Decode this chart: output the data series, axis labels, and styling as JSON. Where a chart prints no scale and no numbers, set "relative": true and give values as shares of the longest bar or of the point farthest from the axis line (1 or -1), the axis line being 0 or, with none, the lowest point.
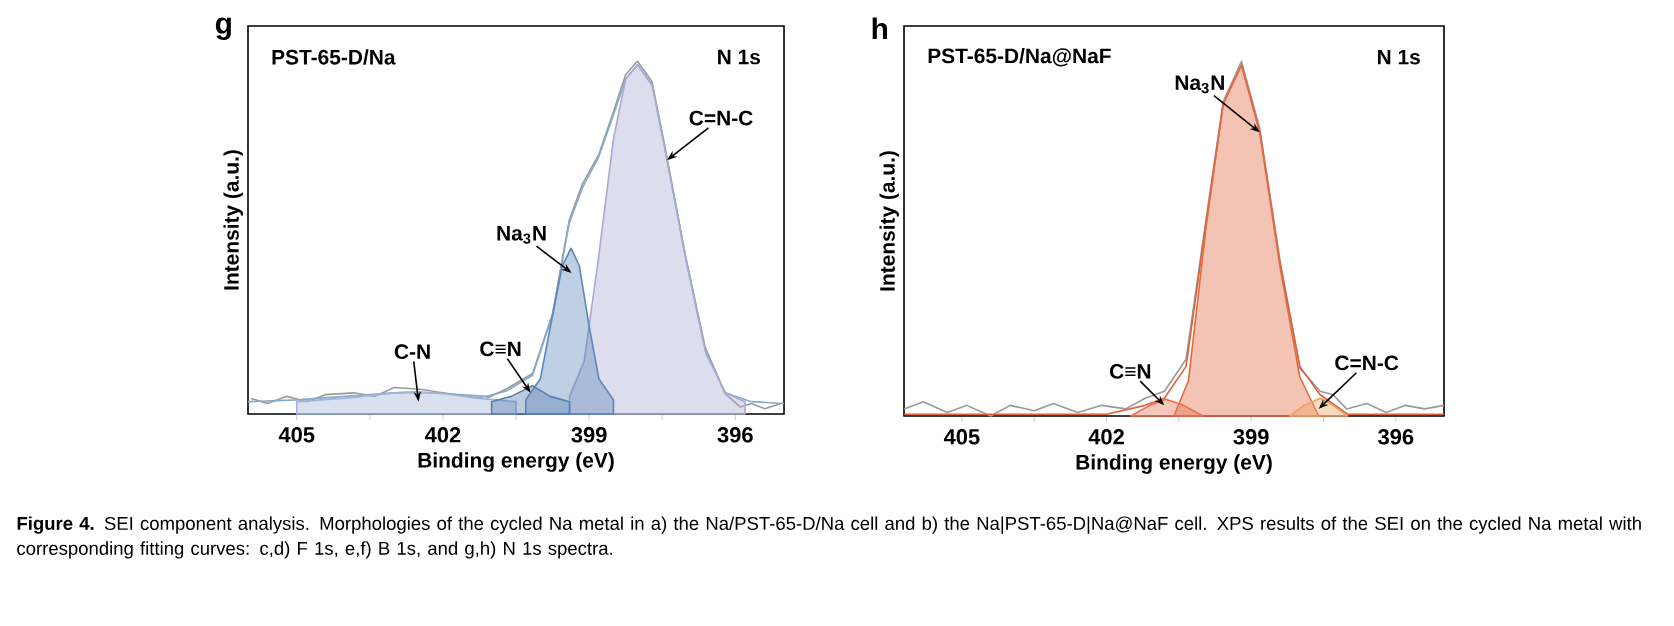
{
  "chart_data": [
    {
      "type": "line",
      "title": "g",
      "subtitle": "PST-65-D/Na",
      "xlabel": "Binding energy (eV)",
      "ylabel": "Intensity (a.u.)",
      "relative": true,
      "xlim": [
        406,
        395
      ],
      "xticks": [
        405,
        {
          "value": 403.5,
          "label": null
        },
        402,
        {
          "value": 400.5,
          "label": null
        },
        399,
        {
          "value": 397.5,
          "label": null
        },
        396
      ],
      "series": [
        {
          "type": "area",
          "color": "#9fb4d6",
          "x": [
            405,
            404,
            403,
            402.6,
            402,
            401.3,
            400.5
          ],
          "values": [
            0.035,
            0.045,
            0.06,
            0.062,
            0.058,
            0.045,
            0.035
          ]
        },
        {
          "type": "area",
          "color": "#a9a9d2",
          "x": [
            399.4,
            399.1,
            398.8,
            398.5,
            398.25,
            398.0,
            397.7,
            397.4,
            397.0,
            396.6,
            396.2,
            395.8
          ],
          "values": [
            0.05,
            0.15,
            0.45,
            0.78,
            0.95,
            0.99,
            0.93,
            0.72,
            0.43,
            0.17,
            0.06,
            0.035
          ]
        },
        {
          "type": "area",
          "color": "#5f86bb",
          "x": [
            400.3,
            400.0,
            399.75,
            399.55,
            399.37,
            399.2,
            399.0,
            398.8,
            398.5
          ],
          "values": [
            0.04,
            0.1,
            0.28,
            0.42,
            0.47,
            0.42,
            0.25,
            0.1,
            0.04
          ]
        },
        {
          "type": "area",
          "color": "#5a80b0",
          "x": [
            401.0,
            400.6,
            400.16,
            399.8,
            399.4
          ],
          "values": [
            0.035,
            0.05,
            0.08,
            0.05,
            0.035
          ]
        },
        {
          "color": "#9a9a9a",
          "x": [
            405.94,
            405.6,
            405.2,
            404.8,
            404.4,
            403.83,
            403.4,
            403.0,
            402.47,
            402.0,
            401.5,
            401.11,
            400.71,
            400.16,
            399.75,
            399.41,
            399.14,
            398.8,
            398.52,
            398.25,
            398.01,
            397.71,
            397.44,
            397.03,
            396.62,
            396.21,
            395.9,
            395.67,
            395.4,
            395.06
          ],
          "values": [
            0.044,
            0.03,
            0.05,
            0.035,
            0.055,
            0.06,
            0.05,
            0.075,
            0.07,
            0.06,
            0.05,
            0.044,
            0.07,
            0.115,
            0.284,
            0.548,
            0.651,
            0.736,
            0.849,
            0.962,
            1.0,
            0.943,
            0.755,
            0.454,
            0.19,
            0.058,
            0.02,
            0.03,
            0.015,
            0.03
          ]
        },
        {
          "color": "#86aacd",
          "x": [
            406,
            405,
            404,
            403,
            402.5,
            402,
            401.1,
            400.7,
            400.16,
            399.75,
            399.41,
            399.14,
            398.8,
            398.52,
            398.25,
            398.01,
            397.71,
            397.44,
            397.03,
            396.62,
            396.21,
            395.67,
            395
          ],
          "values": [
            0.035,
            0.04,
            0.05,
            0.06,
            0.062,
            0.058,
            0.05,
            0.065,
            0.11,
            0.28,
            0.54,
            0.64,
            0.73,
            0.84,
            0.95,
            0.99,
            0.935,
            0.75,
            0.45,
            0.185,
            0.06,
            0.035,
            0.03
          ]
        }
      ],
      "annotations": [
        "N 1s",
        {
          "text": "C=N-C",
          "x": 397.4,
          "y": 0.72
        },
        {
          "text": "Na$_{3}$N",
          "x": 399.36,
          "y": 0.4
        },
        {
          "text": "C≡N",
          "x": 400.2,
          "y": 0.06
        },
        {
          "text": "C-N",
          "x": 402.5,
          "y": 0.035
        },
        "**Figure 4.** SEI component analysis. Morphologies of the cycled Na metal in a) the Na/PST-65-D/Na cell and b) the Na|PST-65-D|Na@NaF cell. XPS results of the SEI on the cycled Na metal with corresponding fitting curves: c,d) F 1s, e,f) B 1s, and g,h) N 1s spectra."
      ]
    },
    {
      "type": "line",
      "title": "h",
      "subtitle": "PST-65-D/Na@NaF",
      "xlabel": "Binding energy (eV)",
      "ylabel": "Intensity (a.u.)",
      "relative": true,
      "xlim": [
        406.2,
        395
      ],
      "xticks": [
        405,
        {
          "value": 403.5,
          "label": null
        },
        402,
        {
          "value": 400.5,
          "label": null
        },
        399,
        {
          "value": 397.5,
          "label": null
        },
        396
      ],
      "series": [
        {
          "type": "area",
          "color": "#e26a42",
          "x": [
            400.6,
            400.3,
            399.93,
            399.58,
            399.2,
            398.82,
            398.4,
            397.99,
            397.6
          ],
          "values": [
            0.0,
            0.1,
            0.54,
            0.88,
            0.99,
            0.8,
            0.42,
            0.11,
            0.0
          ]
        },
        {
          "type": "area",
          "color": "#e5704f",
          "x": [
            401.5,
            401.1,
            400.77,
            400.4,
            400.0
          ],
          "values": [
            0.0,
            0.03,
            0.047,
            0.03,
            0.0
          ]
        },
        {
          "type": "area",
          "color": "#f0a060",
          "x": [
            398.2,
            397.9,
            397.57,
            397.3,
            397.0
          ],
          "values": [
            0.0,
            0.03,
            0.05,
            0.03,
            0.0
          ]
        },
        {
          "color": "#9a9a9a",
          "x": [
            406.2,
            405.8,
            405.3,
            404.9,
            404.4,
            404.0,
            403.5,
            403.1,
            402.6,
            402.1,
            401.6,
            401.2,
            400.8,
            400.35,
            399.93,
            399.58,
            399.2,
            398.82,
            398.4,
            397.99,
            397.57,
            397.3,
            397.02,
            396.6,
            396.2,
            395.8,
            395.4,
            395.0
          ],
          "values": [
            0.02,
            0.04,
            0.01,
            0.03,
            0.0,
            0.03,
            0.015,
            0.035,
            0.01,
            0.03,
            0.02,
            0.05,
            0.07,
            0.16,
            0.56,
            0.887,
            1.0,
            0.81,
            0.436,
            0.135,
            0.07,
            0.06,
            0.02,
            0.035,
            0.01,
            0.03,
            0.02,
            0.03
          ]
        },
        {
          "color": "#e0603a",
          "x": [
            406.2,
            402,
            401.2,
            400.8,
            400.35,
            399.93,
            399.58,
            399.2,
            398.82,
            398.4,
            397.99,
            397.57,
            397.0,
            395.0
          ],
          "values": [
            0.005,
            0.005,
            0.03,
            0.05,
            0.14,
            0.55,
            0.88,
            0.99,
            0.8,
            0.43,
            0.14,
            0.06,
            0.005,
            0.005
          ]
        }
      ],
      "annotations": [
        "N 1s",
        {
          "text": "Na$_{3}$N",
          "x": 398.82,
          "y": 0.8
        },
        {
          "text": "C≡N",
          "x": 400.8,
          "y": 0.03
        },
        {
          "text": "C=N-C",
          "x": 397.6,
          "y": 0.02
        }
      ]
    }
  ]
}
